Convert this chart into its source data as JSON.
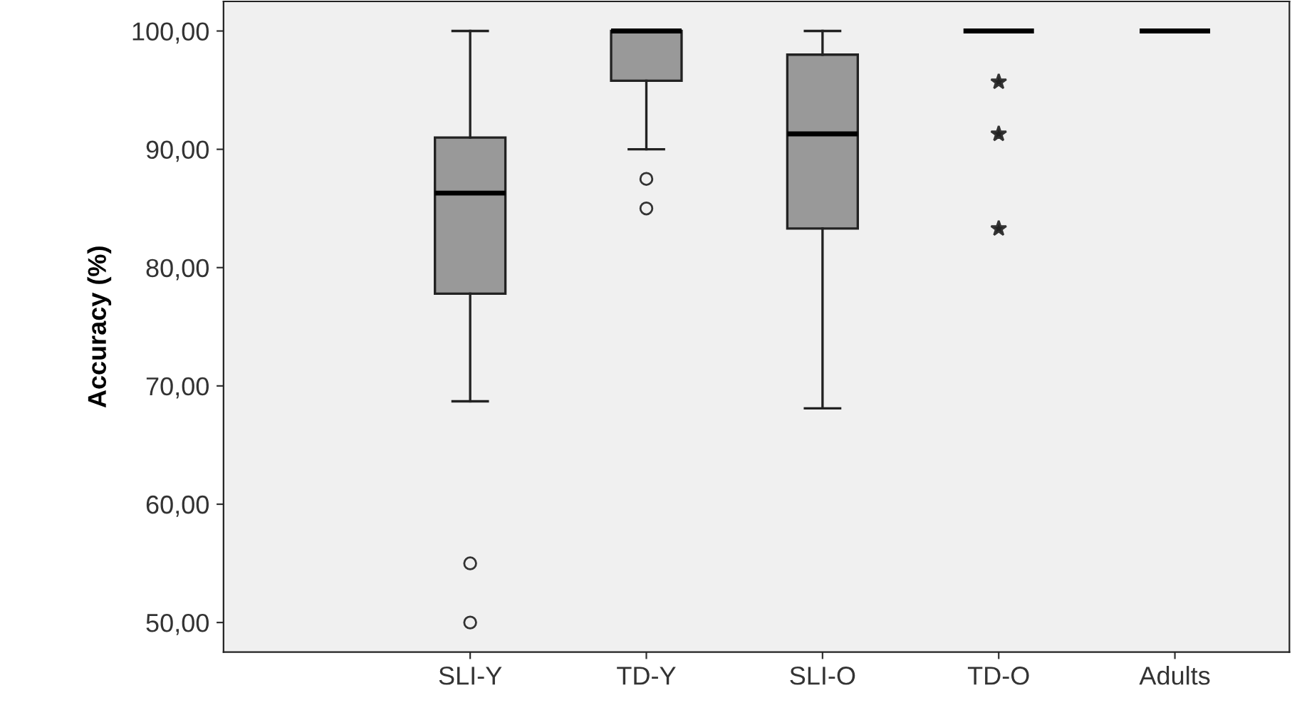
{
  "chart_data": {
    "type": "box",
    "ylabel": "Accuracy (%)",
    "categories": [
      "SLI-Y",
      "TD-Y",
      "SLI-O",
      "TD-O",
      "Adults"
    ],
    "grid": false,
    "legend": false,
    "ylim": [
      47.5,
      102.5
    ],
    "yticks": [
      {
        "value": 50,
        "label": "50,00"
      },
      {
        "value": 60,
        "label": "60,00"
      },
      {
        "value": 70,
        "label": "70,00"
      },
      {
        "value": 80,
        "label": "80,00"
      },
      {
        "value": 90,
        "label": "90,00"
      },
      {
        "value": 100,
        "label": "100,00"
      }
    ],
    "series": [
      {
        "color": "#999999",
        "marker": "circle",
        "boxes": [
          {
            "low": 68.7,
            "q1": 77.8,
            "median": 86.3,
            "q3": 91.0,
            "high": 100,
            "outliers": [
              55,
              50
            ]
          },
          {
            "low": 90,
            "q1": 95.8,
            "median": 100,
            "q3": 100,
            "high": 100,
            "outliers": [
              87.5,
              85.0
            ]
          },
          {
            "low": 68.1,
            "q1": 83.3,
            "median": 91.3,
            "q3": 98.0,
            "high": 100
          },
          null,
          null
        ]
      },
      {
        "marker": "star",
        "boxes": [
          null,
          null,
          null,
          {
            "low": 100,
            "q1": 100,
            "median": 100,
            "q3": 100,
            "high": 100,
            "outliers": [
              95.7,
              91.3,
              83.3
            ]
          },
          {
            "low": 100,
            "q1": 100,
            "median": 100,
            "q3": 100,
            "high": 100
          }
        ]
      }
    ]
  }
}
